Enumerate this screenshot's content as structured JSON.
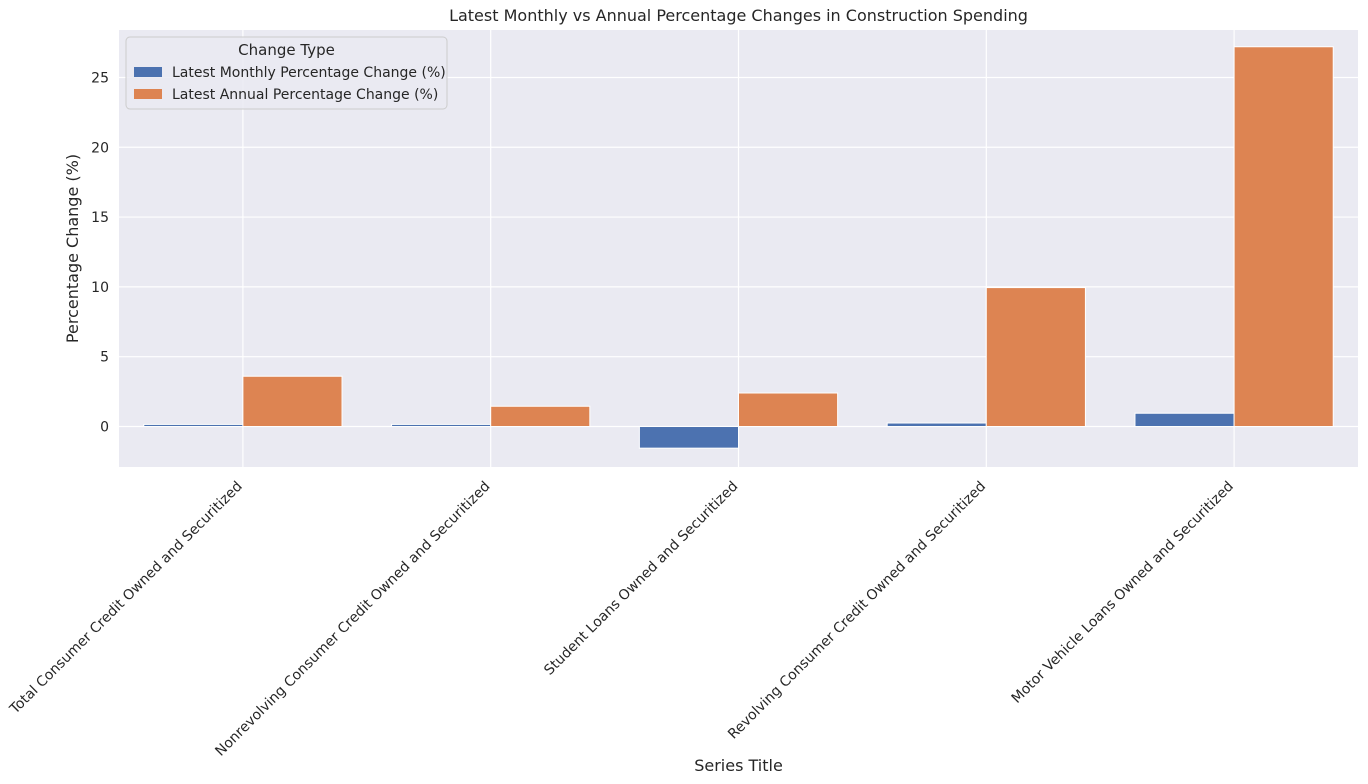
{
  "chart_data": {
    "type": "bar",
    "title": "Latest Monthly vs Annual Percentage Changes in Construction Spending",
    "xlabel": "Series Title",
    "ylabel": "Percentage Change (%)",
    "categories": [
      "Total Consumer Credit Owned and Securitized",
      "Nonrevolving Consumer Credit Owned and Securitized",
      "Student Loans Owned and Securitized",
      "Revolving Consumer Credit Owned and Securitized",
      "Motor Vehicle Loans Owned and Securitized"
    ],
    "series": [
      {
        "name": "Latest Monthly Percentage Change (%)",
        "color": "#4c72b0",
        "values": [
          0.15,
          0.15,
          -1.55,
          0.25,
          0.95
        ]
      },
      {
        "name": "Latest Annual Percentage Change (%)",
        "color": "#dd8452",
        "values": [
          3.6,
          1.45,
          2.4,
          9.95,
          27.2
        ]
      }
    ],
    "ylim": [
      -2.9,
      28.4
    ],
    "yticks": [
      0,
      5,
      10,
      15,
      20,
      25
    ],
    "grid": true,
    "legend": {
      "title": "Change Type",
      "position": "top-left"
    },
    "background": "#eaeaf2"
  }
}
